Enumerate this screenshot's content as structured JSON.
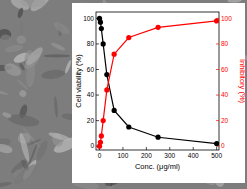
{
  "chart_data": {
    "type": "line",
    "x_label": "Conc. (μg/ml)",
    "y_label": "Cell viability (%)",
    "y2_label": "Inhibitory (%)",
    "x": [
      0,
      3.9,
      7.8,
      15.6,
      31.25,
      62.5,
      125,
      250,
      500
    ],
    "xlim": [
      -15,
      510
    ],
    "xticks": [
      0,
      100,
      200,
      300,
      400,
      500
    ],
    "ylim": [
      -3,
      105
    ],
    "yticks": [
      0,
      20,
      40,
      60,
      80,
      100
    ],
    "y2lim": [
      -3,
      105
    ],
    "y2ticks": [
      0,
      20,
      40,
      60,
      80,
      100
    ],
    "grid": false,
    "series": [
      {
        "name": "Cell viability",
        "color": "#000000",
        "marker": "circle",
        "line_style": "solid",
        "values": [
          100,
          97,
          92,
          80,
          56,
          28,
          15,
          7,
          2
        ]
      },
      {
        "name": "Inhibitory",
        "color": "#ff0000",
        "marker": "circle",
        "line_style": "solid",
        "axis": "y2",
        "values": [
          0,
          3,
          8,
          20,
          44,
          72,
          85,
          93,
          98
        ]
      }
    ]
  }
}
